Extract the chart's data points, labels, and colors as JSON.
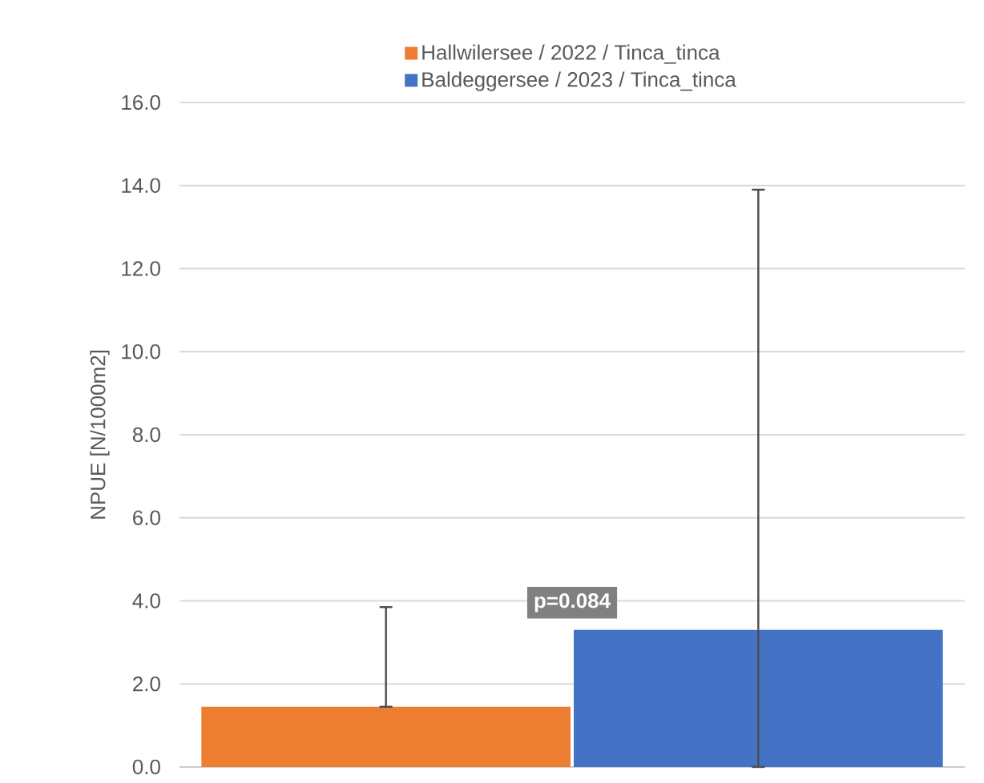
{
  "chart_data": {
    "type": "bar",
    "ylabel": "NPUE [N/1000m2]",
    "categories": [
      null
    ],
    "series": [
      {
        "name": "Hallwilersee / 2022 / Tinca_tinca",
        "color": "#ed7d31",
        "values": [
          1.45
        ],
        "errors": [
          [
            1.45,
            3.85
          ]
        ]
      },
      {
        "name": "Baldeggersee / 2023 / Tinca_tinca",
        "color": "#4472c4",
        "values": [
          3.3
        ],
        "errors": [
          [
            0,
            13.9
          ]
        ]
      }
    ],
    "annotations": [
      "p=0.084"
    ],
    "ylim": [
      0,
      16
    ],
    "yticks": [
      {
        "value": 0,
        "label": "0.0"
      },
      {
        "value": 2,
        "label": "2.0"
      },
      {
        "value": 4,
        "label": "4.0"
      },
      {
        "value": 6,
        "label": "6.0"
      },
      {
        "value": 8,
        "label": "8.0"
      },
      {
        "value": 10,
        "label": "10.0"
      },
      {
        "value": 12,
        "label": "12.0"
      },
      {
        "value": 14,
        "label": "14.0"
      },
      {
        "value": 16,
        "label": "16.0"
      }
    ],
    "grid": "y",
    "legend": "top"
  }
}
